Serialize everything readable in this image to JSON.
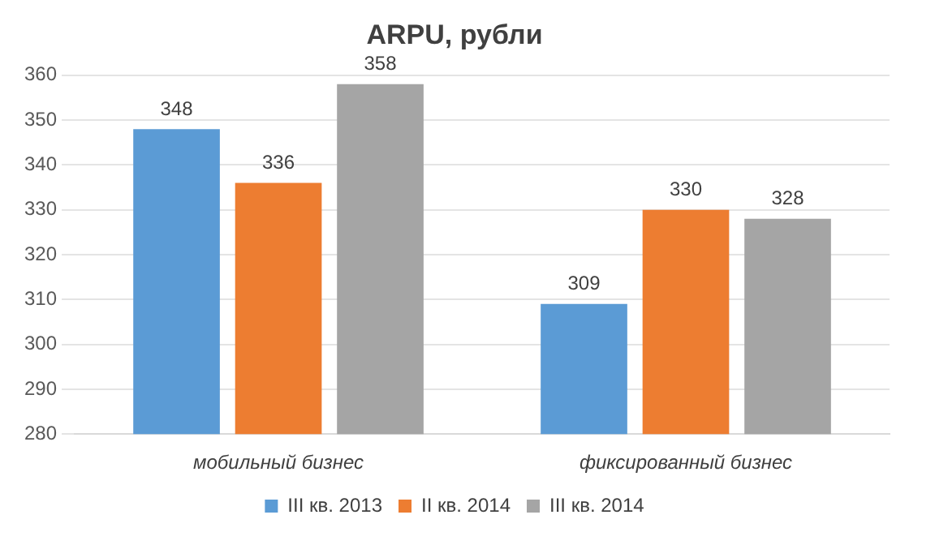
{
  "chart_data": {
    "type": "bar",
    "title": "ARPU, рубли",
    "categories": [
      "мобильный бизнес",
      "фиксированный бизнес"
    ],
    "series": [
      {
        "name": "III кв. 2013",
        "color": "#5b9bd5",
        "values": [
          348,
          309
        ]
      },
      {
        "name": "II кв. 2014",
        "color": "#ed7d31",
        "values": [
          336,
          330
        ]
      },
      {
        "name": "III кв. 2014",
        "color": "#a5a5a5",
        "values": [
          358,
          328
        ]
      }
    ],
    "ylim": [
      280,
      360
    ],
    "yticks": [
      280,
      290,
      300,
      310,
      320,
      330,
      340,
      350,
      360
    ],
    "grid": "y",
    "legend": "bottom",
    "data_labels": true
  }
}
